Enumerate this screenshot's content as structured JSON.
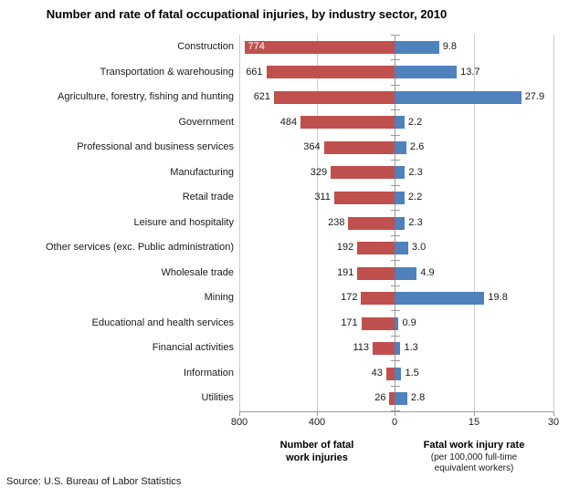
{
  "chart_data": {
    "type": "bar",
    "orientation": "horizontal-diverging",
    "title": "Number and rate of fatal occupational injuries, by industry sector, 2010",
    "categories": [
      "Construction",
      "Transportation & warehousing",
      "Agriculture, forestry, fishing and hunting",
      "Government",
      "Professional and business services",
      "Manufacturing",
      "Retail trade",
      "Leisure and hospitality",
      "Other services (exc. Public administration)",
      "Wholesale trade",
      "Mining",
      "Educational and health services",
      "Financial activities",
      "Information",
      "Utilities"
    ],
    "series": [
      {
        "name": "Number of fatal work injuries",
        "color": "#C0504D",
        "values": [
          774,
          661,
          621,
          484,
          364,
          329,
          311,
          238,
          192,
          191,
          172,
          171,
          113,
          43,
          26
        ]
      },
      {
        "name": "Fatal work injury rate",
        "color": "#4F81BD",
        "values": [
          9.8,
          13.7,
          27.9,
          2.2,
          2.6,
          2.3,
          2.2,
          2.3,
          3.0,
          4.9,
          19.8,
          0.9,
          1.3,
          1.5,
          2.8
        ]
      }
    ],
    "left_axis": {
      "ticks": [
        800,
        400,
        0
      ],
      "max": 800,
      "title_line1": "Number of fatal",
      "title_line2": "work injuries"
    },
    "right_axis": {
      "ticks": [
        0,
        15,
        30
      ],
      "max": 30,
      "title": "Fatal work injury rate",
      "subtitle_line1": "(per 100,000 full-time",
      "subtitle_line2": "equivalent workers)"
    },
    "grid": "vertical-light",
    "legend": "none",
    "source": "Source: U.S. Bureau of Labor Statistics"
  }
}
